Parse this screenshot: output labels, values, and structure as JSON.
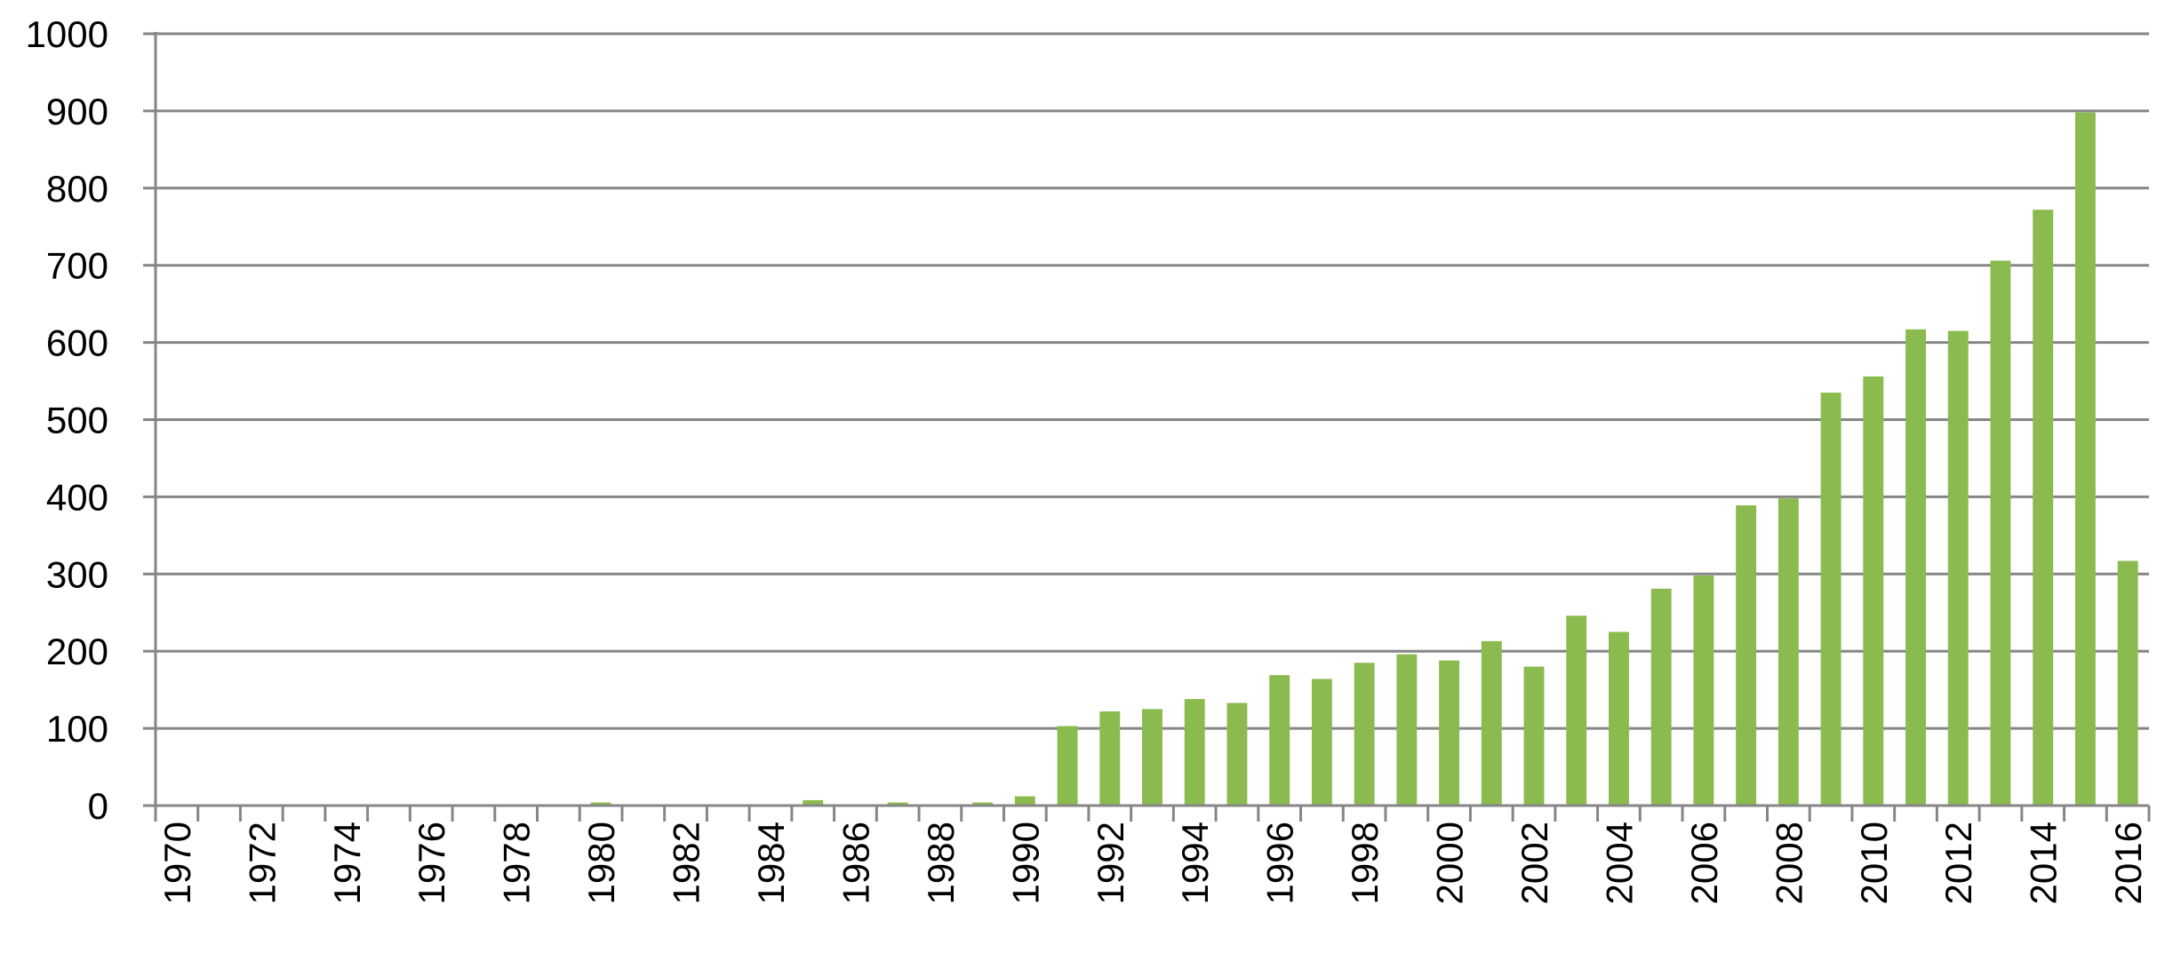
{
  "chart_data": {
    "type": "bar",
    "title": "",
    "xlabel": "",
    "ylabel": "",
    "ylim": [
      0,
      1000
    ],
    "yticks": [
      0,
      100,
      200,
      300,
      400,
      500,
      600,
      700,
      800,
      900,
      1000
    ],
    "grid": "horizontal",
    "legend": "none",
    "bar_color": "#8bbb4f",
    "axis_color": "#868686",
    "grid_color": "#868686",
    "categories": [
      "1970",
      "1971",
      "1972",
      "1973",
      "1974",
      "1975",
      "1976",
      "1977",
      "1978",
      "1979",
      "1980",
      "1981",
      "1982",
      "1983",
      "1984",
      "1985",
      "1986",
      "1987",
      "1988",
      "1989",
      "1990",
      "1991",
      "1992",
      "1993",
      "1994",
      "1995",
      "1996",
      "1997",
      "1998",
      "1999",
      "2000",
      "2001",
      "2002",
      "2003",
      "2004",
      "2005",
      "2006",
      "2007",
      "2008",
      "2009",
      "2010",
      "2011",
      "2012",
      "2013",
      "2014",
      "2015",
      "2016"
    ],
    "x_tick_labels": [
      "1970",
      "",
      "1972",
      "",
      "1974",
      "",
      "1976",
      "",
      "1978",
      "",
      "1980",
      "",
      "1982",
      "",
      "1984",
      "",
      "1986",
      "",
      "1988",
      "",
      "1990",
      "",
      "1992",
      "",
      "1994",
      "",
      "1996",
      "",
      "1998",
      "",
      "2000",
      "",
      "2002",
      "",
      "2004",
      "",
      "2006",
      "",
      "2008",
      "",
      "2010",
      "",
      "2012",
      "",
      "2014",
      "",
      "2016"
    ],
    "values": [
      0,
      0,
      0,
      0,
      0,
      0,
      0,
      0,
      0,
      0,
      4,
      0,
      0,
      0,
      0,
      7,
      0,
      4,
      0,
      4,
      12,
      103,
      122,
      125,
      138,
      133,
      169,
      164,
      185,
      196,
      188,
      213,
      180,
      246,
      225,
      281,
      298,
      389,
      398,
      535,
      556,
      617,
      615,
      706,
      772,
      898,
      317
    ]
  }
}
